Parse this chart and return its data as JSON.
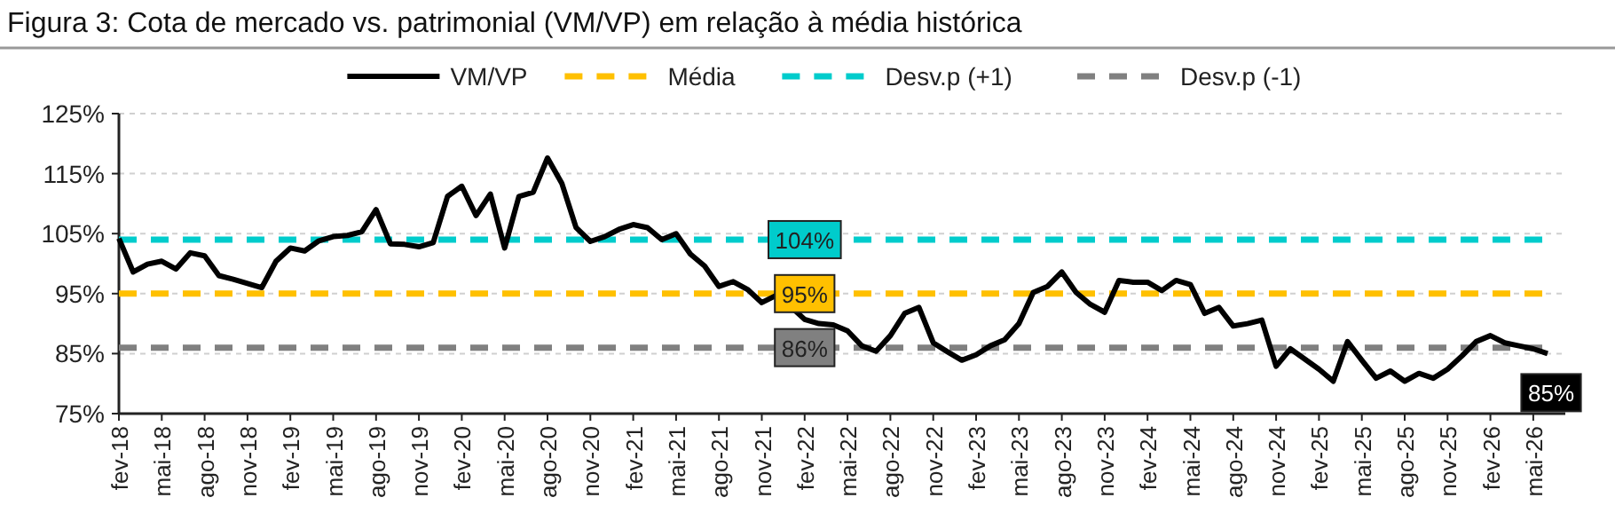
{
  "chart_data": {
    "type": "line",
    "title": "Figura 3: Cota de mercado vs. patrimonial (VM/VP) em relação à média histórica",
    "categories": [
      "fev-18",
      null,
      null,
      "mai-18",
      null,
      null,
      "ago-18",
      null,
      null,
      "nov-18",
      null,
      null,
      "fev-19",
      null,
      null,
      "mai-19",
      null,
      null,
      "ago-19",
      null,
      null,
      "nov-19",
      null,
      null,
      "fev-20",
      null,
      null,
      "mai-20",
      null,
      null,
      "ago-20",
      null,
      null,
      "nov-20",
      null,
      null,
      "fev-21",
      null,
      null,
      "mai-21",
      null,
      null,
      "ago-21",
      null,
      null,
      "nov-21",
      null,
      null,
      "fev-22",
      null,
      null,
      "mai-22",
      null,
      null,
      "ago-22",
      null,
      null,
      "nov-22",
      null,
      null,
      "fev-23",
      null,
      null,
      "mai-23",
      null,
      null,
      "ago-23",
      null,
      null,
      "nov-23",
      null,
      null,
      "fev-24",
      null,
      null,
      "mai-24",
      null,
      null,
      "ago-24",
      null,
      null,
      "nov-24",
      null,
      null,
      "fev-25",
      null,
      null,
      "mai-25",
      null,
      null,
      "ago-25",
      null,
      null,
      "nov-25",
      null,
      null,
      "fev-26",
      null,
      null,
      "mai-26",
      null
    ],
    "series": [
      {
        "name": "VM/VP",
        "color": "#000000",
        "line_style": "solid",
        "values": [
          104.2,
          98.6,
          99.9,
          100.4,
          99.1,
          101.8,
          101.3,
          98.0,
          97.4,
          96.7,
          96.0,
          100.4,
          102.6,
          102.1,
          103.8,
          104.5,
          104.7,
          105.3,
          109.0,
          103.3,
          103.2,
          102.8,
          103.5,
          111.2,
          112.9,
          108.0,
          111.6,
          102.6,
          111.2,
          111.9,
          117.6,
          113.4,
          106.0,
          103.7,
          104.5,
          105.7,
          106.5,
          106.0,
          104.0,
          105.0,
          101.6,
          99.6,
          96.2,
          97.0,
          95.7,
          93.5,
          94.7,
          92.9,
          90.7,
          90.0,
          89.8,
          88.8,
          86.3,
          85.4,
          88.0,
          91.7,
          92.7,
          86.8,
          85.3,
          83.9,
          84.8,
          86.3,
          87.3,
          90.0,
          95.2,
          96.2,
          98.6,
          95.2,
          93.2,
          91.9,
          97.2,
          96.9,
          96.9,
          95.5,
          97.2,
          96.5,
          91.7,
          92.7,
          89.6,
          90.0,
          90.6,
          82.9,
          85.8,
          84.1,
          82.4,
          80.4,
          87.0,
          83.9,
          80.9,
          82.1,
          80.4,
          81.7,
          80.9,
          82.4,
          84.6,
          87.0,
          88.0,
          86.8,
          86.3,
          85.8,
          85
        ],
        "value_labels": [
          null,
          null,
          null,
          null,
          null,
          null,
          null,
          null,
          null,
          null,
          null,
          null,
          null,
          null,
          null,
          null,
          null,
          null,
          null,
          null,
          null,
          null,
          null,
          null,
          null,
          null,
          null,
          null,
          null,
          null,
          null,
          null,
          null,
          null,
          null,
          null,
          null,
          null,
          null,
          null,
          null,
          null,
          null,
          null,
          null,
          null,
          null,
          null,
          null,
          null,
          null,
          null,
          null,
          null,
          null,
          null,
          null,
          null,
          null,
          null,
          null,
          null,
          null,
          null,
          null,
          null,
          null,
          null,
          null,
          null,
          null,
          null,
          null,
          null,
          null,
          null,
          null,
          null,
          null,
          null,
          null,
          null,
          null,
          null,
          null,
          null,
          null,
          null,
          null,
          null,
          null,
          null,
          null,
          null,
          null,
          null,
          null,
          null,
          null,
          null,
          "85%"
        ]
      },
      {
        "name": "Média",
        "color": "#ffc000",
        "line_style": "dashed",
        "values": [
          95,
          95,
          95,
          95,
          95,
          95,
          95,
          95,
          95,
          95,
          95,
          95,
          95,
          95,
          95,
          95,
          95,
          95,
          95,
          95,
          95,
          95,
          95,
          95,
          95,
          95,
          95,
          95,
          95,
          95,
          95,
          95,
          95,
          95,
          95,
          95,
          95,
          95,
          95,
          95,
          95,
          95,
          95,
          95,
          95,
          95,
          95,
          95,
          95,
          95,
          95,
          95,
          95,
          95,
          95,
          95,
          95,
          95,
          95,
          95,
          95,
          95,
          95,
          95,
          95,
          95,
          95,
          95,
          95,
          95,
          95,
          95,
          95,
          95,
          95,
          95,
          95,
          95,
          95,
          95,
          95,
          95,
          95,
          95,
          95,
          95,
          95,
          95,
          95,
          95,
          95,
          95,
          95,
          95,
          95,
          95,
          95,
          95,
          95,
          95,
          95
        ],
        "value_labels": [
          null,
          null,
          null,
          null,
          null,
          null,
          null,
          null,
          null,
          null,
          null,
          null,
          null,
          null,
          null,
          null,
          null,
          null,
          null,
          null,
          null,
          null,
          null,
          null,
          null,
          null,
          null,
          null,
          null,
          null,
          null,
          null,
          null,
          null,
          null,
          null,
          null,
          null,
          null,
          null,
          null,
          null,
          null,
          null,
          null,
          null,
          null,
          null,
          "95%",
          null,
          null,
          null,
          null,
          null,
          null,
          null,
          null,
          null,
          null,
          null,
          null,
          null,
          null,
          null,
          null,
          null,
          null,
          null,
          null,
          null,
          null,
          null,
          null,
          null,
          null,
          null,
          null,
          null,
          null,
          null,
          null,
          null,
          null,
          null,
          null,
          null,
          null,
          null,
          null,
          null,
          null,
          null,
          null,
          null,
          null,
          null,
          null,
          null,
          null,
          null,
          null
        ]
      },
      {
        "name": "Desv.p (+1)",
        "color": "#00cccc",
        "line_style": "dashed",
        "values": [
          104,
          104,
          104,
          104,
          104,
          104,
          104,
          104,
          104,
          104,
          104,
          104,
          104,
          104,
          104,
          104,
          104,
          104,
          104,
          104,
          104,
          104,
          104,
          104,
          104,
          104,
          104,
          104,
          104,
          104,
          104,
          104,
          104,
          104,
          104,
          104,
          104,
          104,
          104,
          104,
          104,
          104,
          104,
          104,
          104,
          104,
          104,
          104,
          104,
          104,
          104,
          104,
          104,
          104,
          104,
          104,
          104,
          104,
          104,
          104,
          104,
          104,
          104,
          104,
          104,
          104,
          104,
          104,
          104,
          104,
          104,
          104,
          104,
          104,
          104,
          104,
          104,
          104,
          104,
          104,
          104,
          104,
          104,
          104,
          104,
          104,
          104,
          104,
          104,
          104,
          104,
          104,
          104,
          104,
          104,
          104,
          104,
          104,
          104,
          104,
          104
        ],
        "value_labels": [
          null,
          null,
          null,
          null,
          null,
          null,
          null,
          null,
          null,
          null,
          null,
          null,
          null,
          null,
          null,
          null,
          null,
          null,
          null,
          null,
          null,
          null,
          null,
          null,
          null,
          null,
          null,
          null,
          null,
          null,
          null,
          null,
          null,
          null,
          null,
          null,
          null,
          null,
          null,
          null,
          null,
          null,
          null,
          null,
          null,
          null,
          null,
          null,
          "104%",
          null,
          null,
          null,
          null,
          null,
          null,
          null,
          null,
          null,
          null,
          null,
          null,
          null,
          null,
          null,
          null,
          null,
          null,
          null,
          null,
          null,
          null,
          null,
          null,
          null,
          null,
          null,
          null,
          null,
          null,
          null,
          null,
          null,
          null,
          null,
          null,
          null,
          null,
          null,
          null,
          null,
          null,
          null,
          null,
          null,
          null,
          null,
          null,
          null,
          null,
          null,
          null
        ]
      },
      {
        "name": "Desv.p (-1)",
        "color": "#808080",
        "line_style": "dashed",
        "values": [
          86,
          86,
          86,
          86,
          86,
          86,
          86,
          86,
          86,
          86,
          86,
          86,
          86,
          86,
          86,
          86,
          86,
          86,
          86,
          86,
          86,
          86,
          86,
          86,
          86,
          86,
          86,
          86,
          86,
          86,
          86,
          86,
          86,
          86,
          86,
          86,
          86,
          86,
          86,
          86,
          86,
          86,
          86,
          86,
          86,
          86,
          86,
          86,
          86,
          86,
          86,
          86,
          86,
          86,
          86,
          86,
          86,
          86,
          86,
          86,
          86,
          86,
          86,
          86,
          86,
          86,
          86,
          86,
          86,
          86,
          86,
          86,
          86,
          86,
          86,
          86,
          86,
          86,
          86,
          86,
          86,
          86,
          86,
          86,
          86,
          86,
          86,
          86,
          86,
          86,
          86,
          86,
          86,
          86,
          86,
          86,
          86,
          86,
          86,
          86,
          86
        ],
        "value_labels": [
          null,
          null,
          null,
          null,
          null,
          null,
          null,
          null,
          null,
          null,
          null,
          null,
          null,
          null,
          null,
          null,
          null,
          null,
          null,
          null,
          null,
          null,
          null,
          null,
          null,
          null,
          null,
          null,
          null,
          null,
          null,
          null,
          null,
          null,
          null,
          null,
          null,
          null,
          null,
          null,
          null,
          null,
          null,
          null,
          null,
          null,
          null,
          null,
          "86%",
          null,
          null,
          null,
          null,
          null,
          null,
          null,
          null,
          null,
          null,
          null,
          null,
          null,
          null,
          null,
          null,
          null,
          null,
          null,
          null,
          null,
          null,
          null,
          null,
          null,
          null,
          null,
          null,
          null,
          null,
          null,
          null,
          null,
          null,
          null,
          null,
          null,
          null,
          null,
          null,
          null,
          null,
          null,
          null,
          null,
          null,
          null,
          null,
          null,
          null,
          null,
          null
        ]
      }
    ],
    "ylim": [
      75,
      125
    ],
    "yticks": [
      {
        "value": 75,
        "label": "75%"
      },
      {
        "value": 85,
        "label": "85%"
      },
      {
        "value": 95,
        "label": "95%"
      },
      {
        "value": 105,
        "label": "105%"
      },
      {
        "value": 115,
        "label": "115%"
      },
      {
        "value": 125,
        "label": "125%"
      }
    ],
    "grid": "y",
    "legend": "top",
    "marker": "none"
  }
}
